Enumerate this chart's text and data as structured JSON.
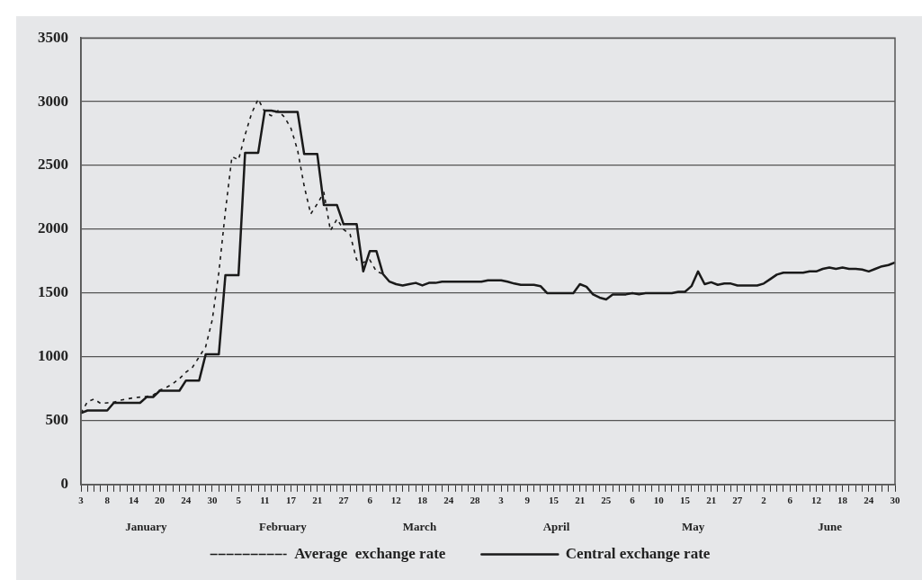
{
  "chart_data": {
    "type": "line",
    "categories": [
      "3",
      null,
      null,
      null,
      "8",
      null,
      null,
      null,
      "14",
      null,
      null,
      null,
      "20",
      null,
      null,
      null,
      "24",
      null,
      null,
      null,
      "30",
      null,
      null,
      null,
      "5",
      null,
      null,
      null,
      "11",
      null,
      null,
      null,
      "17",
      null,
      null,
      null,
      "21",
      null,
      null,
      null,
      "27",
      null,
      null,
      null,
      "6",
      null,
      null,
      null,
      "12",
      null,
      null,
      null,
      "18",
      null,
      null,
      null,
      "24",
      null,
      null,
      null,
      "28",
      null,
      null,
      null,
      "3",
      null,
      null,
      null,
      "9",
      null,
      null,
      null,
      "15",
      null,
      null,
      null,
      "21",
      null,
      null,
      null,
      "25",
      null,
      null,
      null,
      "6",
      null,
      null,
      null,
      "10",
      null,
      null,
      null,
      "15",
      null,
      null,
      null,
      "21",
      null,
      null,
      null,
      "27",
      null,
      null,
      null,
      "2",
      null,
      null,
      null,
      "6",
      null,
      null,
      null,
      "12",
      null,
      null,
      null,
      "18",
      null,
      null,
      null,
      "24",
      null,
      null,
      null,
      "30"
    ],
    "series": [
      {
        "name": "Average  exchange rate",
        "color": "#1a1a1a",
        "line_style": "dashed",
        "values": [
          560,
          650,
          670,
          635,
          640,
          645,
          660,
          670,
          680,
          685,
          690,
          700,
          740,
          760,
          790,
          830,
          880,
          920,
          1000,
          1080,
          1290,
          1660,
          2140,
          2570,
          2545,
          2740,
          2910,
          3020,
          2920,
          2890,
          2930,
          2880,
          2790,
          2620,
          2340,
          2120,
          2200,
          2290,
          1990,
          2080,
          2000,
          1960,
          1760,
          1740,
          1760,
          1670,
          1650,
          null,
          null,
          null,
          null,
          null,
          null,
          null,
          null,
          null,
          null,
          null,
          null,
          null,
          null,
          null,
          null,
          null,
          null,
          null,
          null,
          null,
          null,
          null,
          null,
          null,
          null,
          null,
          null,
          null,
          null,
          null,
          null,
          null,
          null,
          null,
          null,
          null,
          null,
          null,
          null,
          null,
          null,
          null,
          null,
          null,
          null,
          null,
          null,
          null,
          null,
          null,
          null,
          null,
          null,
          null,
          null,
          null,
          null,
          null,
          null,
          null,
          null,
          null,
          null,
          null,
          null,
          null,
          null,
          null,
          null,
          null,
          null,
          null,
          null,
          null,
          null,
          null,
          null
        ]
      },
      {
        "name": "Central exchange rate",
        "color": "#1a1a1a",
        "line_style": "solid",
        "values": [
          560,
          580,
          580,
          580,
          580,
          640,
          640,
          640,
          640,
          640,
          685,
          685,
          735,
          735,
          735,
          735,
          815,
          815,
          815,
          1020,
          1020,
          1020,
          1640,
          1640,
          1640,
          2600,
          2600,
          2600,
          2930,
          2930,
          2920,
          2920,
          2920,
          2920,
          2590,
          2590,
          2590,
          2190,
          2190,
          2190,
          2040,
          2040,
          2040,
          1670,
          1830,
          1830,
          1650,
          1590,
          1570,
          1560,
          1570,
          1580,
          1560,
          1580,
          1580,
          1590,
          1590,
          1590,
          1590,
          1590,
          1590,
          1590,
          1600,
          1600,
          1600,
          1590,
          1575,
          1565,
          1565,
          1565,
          1555,
          1500,
          1500,
          1500,
          1500,
          1500,
          1570,
          1550,
          1490,
          1465,
          1450,
          1490,
          1490,
          1490,
          1500,
          1490,
          1500,
          1500,
          1500,
          1500,
          1500,
          1510,
          1510,
          1555,
          1670,
          1570,
          1585,
          1565,
          1575,
          1575,
          1560,
          1560,
          1560,
          1560,
          1575,
          1610,
          1645,
          1660,
          1660,
          1660,
          1660,
          1670,
          1670,
          1690,
          1700,
          1690,
          1700,
          1690,
          1690,
          1685,
          1670,
          1690,
          1710,
          1720,
          1740
        ]
      }
    ],
    "annotations": [
      "January",
      "February",
      "March",
      "April",
      "May",
      "June"
    ],
    "ylim": [
      0,
      3500
    ],
    "yticks": [
      0,
      500,
      1000,
      1500,
      2000,
      2500,
      3000,
      3500
    ],
    "grid": "y",
    "legend": "bottom",
    "marker": "none"
  }
}
